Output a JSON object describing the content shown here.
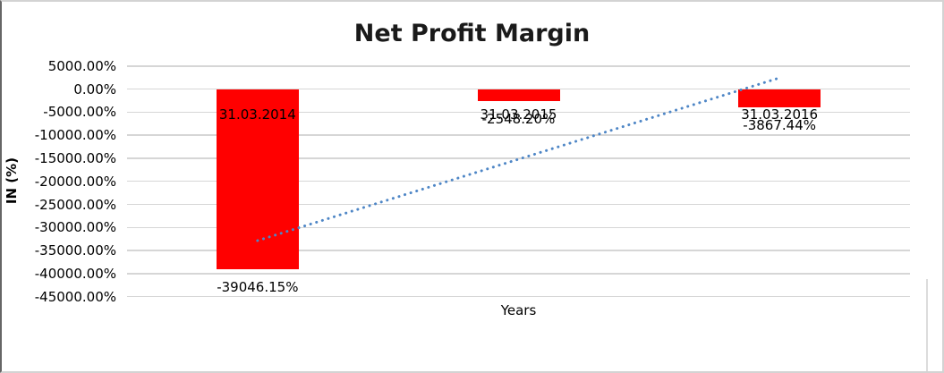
{
  "chart_data": {
    "type": "bar",
    "title": "Net Profit Margin",
    "xlabel": "Years",
    "ylabel": "IN (%)",
    "categories": [
      "31.03.2014",
      "31.03.2015",
      "31.03.2016"
    ],
    "values": [
      -39046.15,
      -2548.2,
      -3867.44
    ],
    "data_labels": [
      "-39046.15%",
      "-2548.20%",
      "-3867.44%"
    ],
    "bar_color": "#ff0000",
    "ylim": [
      -45000,
      5000
    ],
    "ytick_step": 5000,
    "ytick_labels": [
      "5000.00%",
      "0.00%",
      "-5000.00%",
      "-10000.00%",
      "-15000.00%",
      "-20000.00%",
      "-25000.00%",
      "-30000.00%",
      "-35000.00%",
      "-40000.00%",
      "-45000.00%"
    ],
    "grid": true,
    "gridline_color": "#d6d6d6",
    "text_color": "#000000",
    "legend": "none",
    "trendline": {
      "type": "linear",
      "style": "dotted",
      "color": "#4e86c6",
      "start_value": -32860,
      "end_value": 2465
    }
  }
}
